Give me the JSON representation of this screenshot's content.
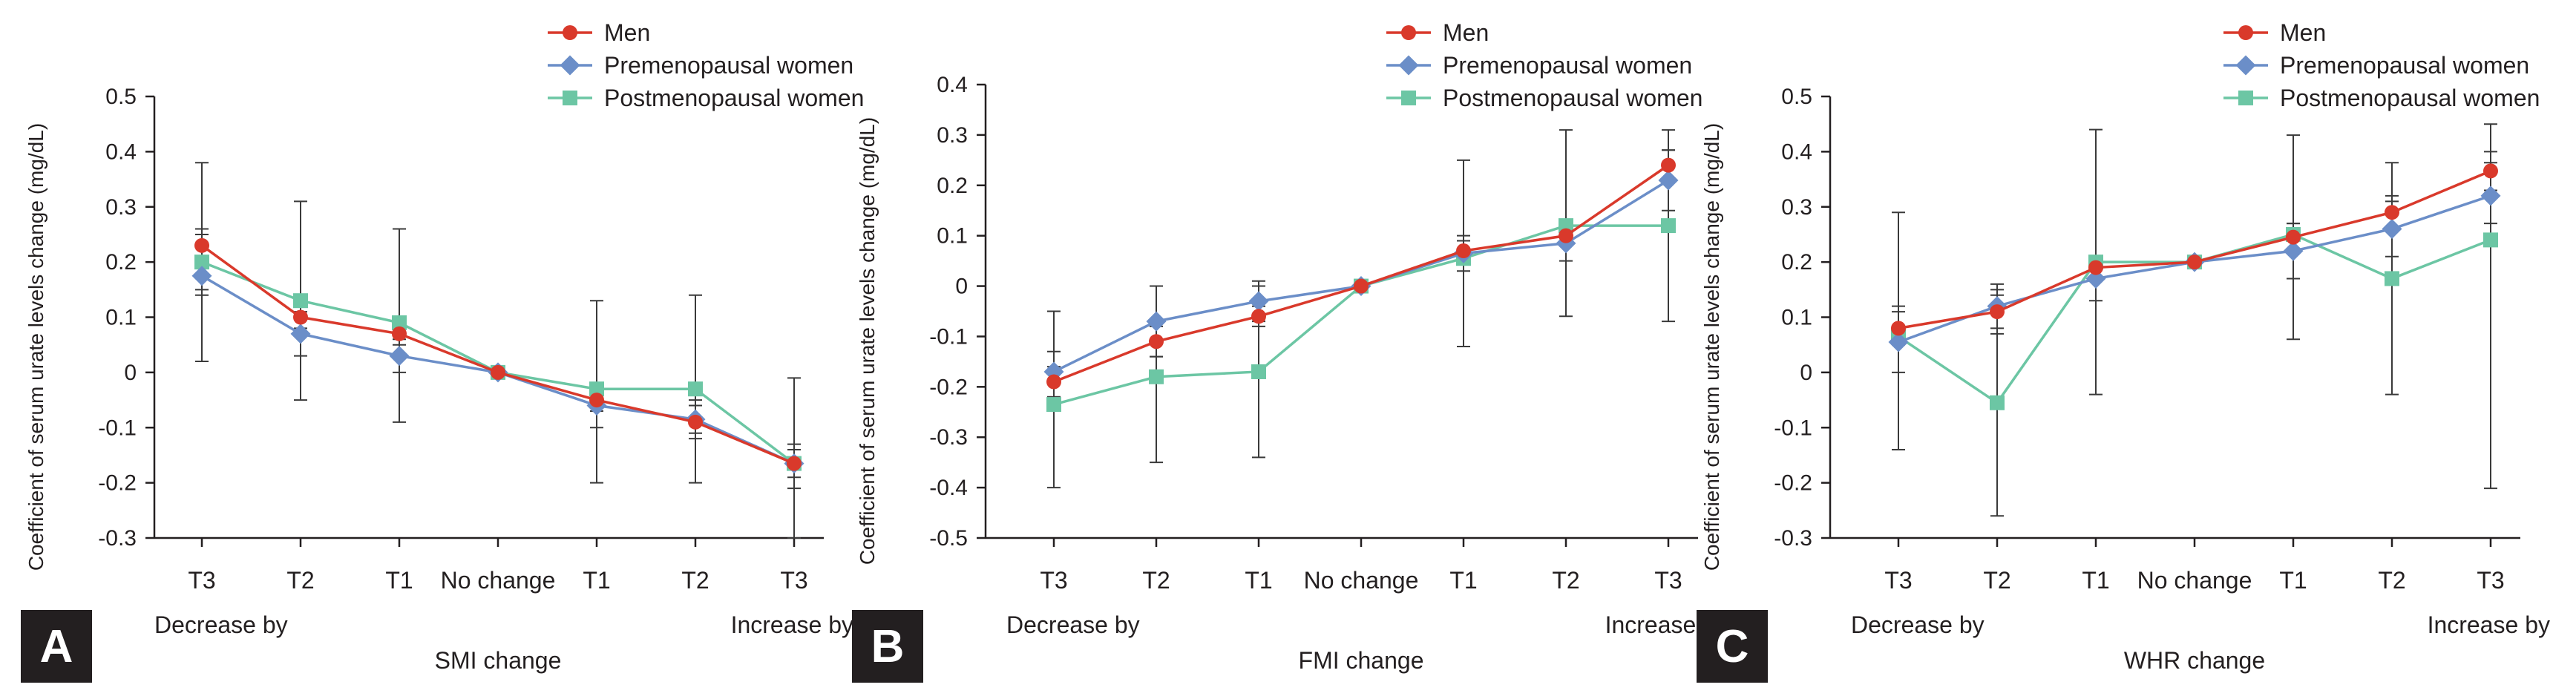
{
  "chart_data": [
    {
      "type": "line",
      "panel_letter": "A",
      "title": "",
      "xlabel": "SMI change",
      "ylabel": "Coefficient of serum urate levels change (mg/dL)",
      "categories": [
        "T3",
        "T2",
        "T1",
        "No change",
        "T1",
        "T2",
        "T3"
      ],
      "group_labels": {
        "left": "Decrease by",
        "right": "Increase by"
      },
      "ylim": [
        -0.3,
        0.5
      ],
      "yticks": [
        "0.5",
        "0.4",
        "0.3",
        "0.2",
        "0.1",
        "0",
        "-0.1",
        "-0.2",
        "-0.3"
      ],
      "legend_position": "top-right",
      "grid": false,
      "series": [
        {
          "name": "Men",
          "color": "#d9392b",
          "marker": "circle",
          "values": [
            0.23,
            0.1,
            0.07,
            0.0,
            -0.05,
            -0.09,
            -0.165
          ],
          "ci": [
            [
              0.14,
              0.26
            ],
            [
              0.08,
              0.12
            ],
            [
              0.05,
              0.09
            ],
            [
              0.0,
              0.0
            ],
            [
              -0.07,
              -0.03
            ],
            [
              -0.11,
              -0.06
            ],
            [
              -0.19,
              -0.14
            ]
          ]
        },
        {
          "name": "Premenopausal women",
          "color": "#6b8ec8",
          "marker": "diamond",
          "values": [
            0.175,
            0.07,
            0.03,
            0.0,
            -0.06,
            -0.085,
            -0.165
          ],
          "ci": [
            [
              0.02,
              0.38
            ],
            [
              0.03,
              0.11
            ],
            [
              0.0,
              0.06
            ],
            [
              0.0,
              0.0
            ],
            [
              -0.1,
              -0.02
            ],
            [
              -0.12,
              -0.05
            ],
            [
              -0.21,
              -0.13
            ]
          ]
        },
        {
          "name": "Postmenopausal women",
          "color": "#6cc6a4",
          "marker": "square",
          "values": [
            0.2,
            0.13,
            0.09,
            0.0,
            -0.03,
            -0.03,
            -0.165
          ],
          "ci": [
            [
              0.15,
              0.25
            ],
            [
              -0.05,
              0.31
            ],
            [
              -0.09,
              0.26
            ],
            [
              0.0,
              0.0
            ],
            [
              -0.2,
              0.13
            ],
            [
              -0.2,
              0.14
            ],
            [
              -0.3,
              -0.01
            ]
          ]
        }
      ]
    },
    {
      "type": "line",
      "panel_letter": "B",
      "title": "",
      "xlabel": "FMI change",
      "ylabel": "Coefficient of serum urate levels change (mg/dL)",
      "categories": [
        "T3",
        "T2",
        "T1",
        "No change",
        "T1",
        "T2",
        "T3"
      ],
      "group_labels": {
        "left": "Decrease by",
        "right": "Increase by"
      },
      "ylim": [
        -0.5,
        0.4
      ],
      "yticks": [
        "0.4",
        "0.3",
        "0.2",
        "0.1",
        "0",
        "-0.1",
        "-0.2",
        "-0.3",
        "-0.4",
        "-0.5"
      ],
      "legend_position": "top-right",
      "grid": false,
      "series": [
        {
          "name": "Men",
          "color": "#d9392b",
          "marker": "circle",
          "values": [
            -0.19,
            -0.11,
            -0.06,
            0.0,
            0.07,
            0.1,
            0.24
          ],
          "ci": [
            [
              -0.22,
              -0.16
            ],
            [
              -0.14,
              -0.08
            ],
            [
              -0.08,
              -0.04
            ],
            [
              0.0,
              0.0
            ],
            [
              0.05,
              0.09
            ],
            [
              0.08,
              0.12
            ],
            [
              0.21,
              0.27
            ]
          ]
        },
        {
          "name": "Premenopausal women",
          "color": "#6b8ec8",
          "marker": "diamond",
          "values": [
            -0.17,
            -0.07,
            -0.03,
            0.0,
            0.065,
            0.085,
            0.21
          ],
          "ci": [
            [
              -0.22,
              -0.13
            ],
            [
              -0.14,
              0.0
            ],
            [
              -0.07,
              0.01
            ],
            [
              0.0,
              0.0
            ],
            [
              0.03,
              0.1
            ],
            [
              0.05,
              0.12
            ],
            [
              0.15,
              0.27
            ]
          ]
        },
        {
          "name": "Postmenopausal women",
          "color": "#6cc6a4",
          "marker": "square",
          "values": [
            -0.235,
            -0.18,
            -0.17,
            0.0,
            0.055,
            0.12,
            0.12
          ],
          "ci": [
            [
              -0.4,
              -0.05
            ],
            [
              -0.35,
              0.0
            ],
            [
              -0.34,
              0.0
            ],
            [
              0.0,
              0.0
            ],
            [
              -0.12,
              0.25
            ],
            [
              -0.06,
              0.31
            ],
            [
              -0.07,
              0.31
            ]
          ]
        }
      ]
    },
    {
      "type": "line",
      "panel_letter": "C",
      "title": "",
      "xlabel": "WHR change",
      "ylabel": "Coefficient of serum urate levels change (mg/dL)",
      "categories": [
        "T3",
        "T2",
        "T1",
        "No change",
        "T1",
        "T2",
        "T3"
      ],
      "group_labels": {
        "left": "Decrease by",
        "right": "Increase by"
      },
      "ylim": [
        -0.3,
        0.5
      ],
      "yticks": [
        "0.5",
        "0.4",
        "0.3",
        "0.2",
        "0.1",
        "0",
        "-0.1",
        "-0.2",
        "-0.3"
      ],
      "legend_position": "top-right",
      "grid": false,
      "series": [
        {
          "name": "Men",
          "color": "#d9392b",
          "marker": "circle",
          "values": [
            0.08,
            0.11,
            0.19,
            0.2,
            0.245,
            0.29,
            0.365
          ],
          "ci": [
            [
              0.05,
              0.11
            ],
            [
              0.08,
              0.14
            ],
            [
              0.17,
              0.21
            ],
            [
              0.2,
              0.2
            ],
            [
              0.22,
              0.27
            ],
            [
              0.26,
              0.32
            ],
            [
              0.33,
              0.4
            ]
          ]
        },
        {
          "name": "Premenopausal women",
          "color": "#6b8ec8",
          "marker": "diamond",
          "values": [
            0.055,
            0.12,
            0.17,
            0.2,
            0.22,
            0.26,
            0.32
          ],
          "ci": [
            [
              0.0,
              0.12
            ],
            [
              0.07,
              0.16
            ],
            [
              0.13,
              0.21
            ],
            [
              0.2,
              0.2
            ],
            [
              0.17,
              0.27
            ],
            [
              0.21,
              0.31
            ],
            [
              0.27,
              0.38
            ]
          ]
        },
        {
          "name": "Postmenopausal women",
          "color": "#6cc6a4",
          "marker": "square",
          "values": [
            0.065,
            -0.055,
            0.2,
            0.2,
            0.25,
            0.17,
            0.24
          ],
          "ci": [
            [
              -0.14,
              0.29
            ],
            [
              -0.26,
              0.15
            ],
            [
              -0.04,
              0.44
            ],
            [
              0.2,
              0.2
            ],
            [
              0.06,
              0.43
            ],
            [
              -0.04,
              0.38
            ],
            [
              -0.21,
              0.45
            ]
          ]
        }
      ]
    }
  ]
}
